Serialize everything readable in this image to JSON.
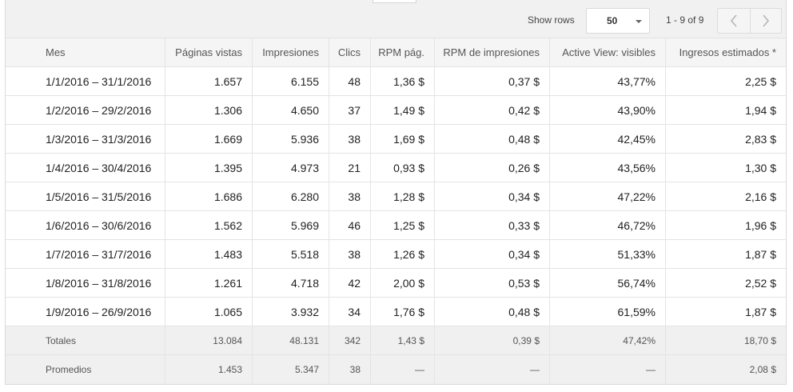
{
  "toolbar": {
    "show_rows_label": "Show rows",
    "rows_per_page": "50",
    "pagination_text": "1 - 9 of 9",
    "dropdown_icon": "caret-down-icon",
    "prev_icon": "chevron-left-icon",
    "next_icon": "chevron-right-icon"
  },
  "table": {
    "columns": [
      "Mes",
      "Páginas vistas",
      "Impresiones",
      "Clics",
      "RPM pág.",
      "RPM de impresiones",
      "Active View: visibles",
      "Ingresos estimados *"
    ],
    "rows": [
      [
        "1/1/2016 – 31/1/2016",
        "1.657",
        "6.155",
        "48",
        "1,36 $",
        "0,37 $",
        "43,77%",
        "2,25 $"
      ],
      [
        "1/2/2016 – 29/2/2016",
        "1.306",
        "4.650",
        "37",
        "1,49 $",
        "0,42 $",
        "43,90%",
        "1,94 $"
      ],
      [
        "1/3/2016 – 31/3/2016",
        "1.669",
        "5.936",
        "38",
        "1,69 $",
        "0,48 $",
        "42,45%",
        "2,83 $"
      ],
      [
        "1/4/2016 – 30/4/2016",
        "1.395",
        "4.973",
        "21",
        "0,93 $",
        "0,26 $",
        "43,56%",
        "1,30 $"
      ],
      [
        "1/5/2016 – 31/5/2016",
        "1.686",
        "6.280",
        "38",
        "1,28 $",
        "0,34 $",
        "47,22%",
        "2,16 $"
      ],
      [
        "1/6/2016 – 30/6/2016",
        "1.562",
        "5.969",
        "46",
        "1,25 $",
        "0,33 $",
        "46,72%",
        "1,96 $"
      ],
      [
        "1/7/2016 – 31/7/2016",
        "1.483",
        "5.518",
        "38",
        "1,26 $",
        "0,34 $",
        "51,33%",
        "1,87 $"
      ],
      [
        "1/8/2016 – 31/8/2016",
        "1.261",
        "4.718",
        "42",
        "2,00 $",
        "0,53 $",
        "56,74%",
        "2,52 $"
      ],
      [
        "1/9/2016 – 26/9/2016",
        "1.065",
        "3.932",
        "34",
        "1,76 $",
        "0,48 $",
        "61,59%",
        "1,87 $"
      ]
    ],
    "totals": [
      "Totales",
      "13.084",
      "48.131",
      "342",
      "1,43 $",
      "0,39 $",
      "47,42%",
      "18,70 $"
    ],
    "averages": [
      "Promedios",
      "1.453",
      "5.347",
      "38",
      "—",
      "—",
      "—",
      "2,08 $"
    ]
  },
  "colors": {
    "toolbar_background": "#f1f1f1",
    "header_background": "#f5f5f5",
    "summary_background": "#f0f0f0",
    "disabled_icon": "#b5b5b5"
  }
}
